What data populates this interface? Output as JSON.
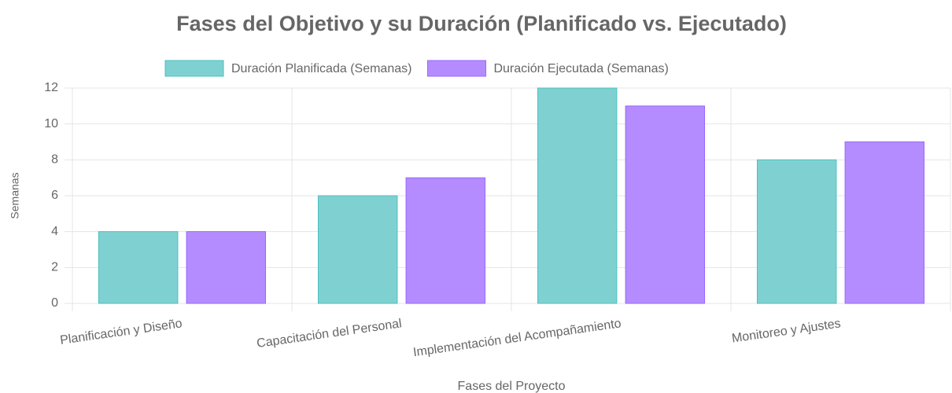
{
  "chart_data": {
    "type": "bar",
    "title": "Fases del Objetivo y su Duración (Planificado vs. Ejecutado)",
    "categories": [
      "Planificación y Diseño",
      "Capacitación del Personal",
      "Implementación del Acompañamiento",
      "Monitoreo y Ajustes"
    ],
    "series": [
      {
        "name": "Duración Planificada (Semanas)",
        "color": "#7fd1d1",
        "border": "#4bc0c0",
        "values": [
          4,
          6,
          12,
          8
        ]
      },
      {
        "name": "Duración Ejecutada (Semanas)",
        "color": "#b48cff",
        "border": "#9966ff",
        "values": [
          4,
          7,
          11,
          9
        ]
      }
    ],
    "xlabel": "Fases del Proyecto",
    "ylabel": "Semanas",
    "ylim": [
      0,
      12
    ],
    "yticks": [
      0,
      2,
      4,
      6,
      8,
      10,
      12
    ],
    "grid": true,
    "legend": "top"
  }
}
